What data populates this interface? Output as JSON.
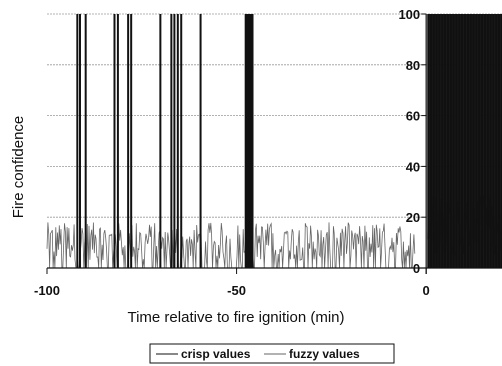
{
  "chart_data": {
    "type": "line",
    "title": "",
    "xlabel": "Time relative to fire ignition (min)",
    "ylabel": "Fire confidence",
    "xlim": [
      -100,
      20
    ],
    "ylim": [
      0,
      100
    ],
    "x_ticks": [
      -100,
      -50,
      0
    ],
    "y_ticks": [
      0,
      20,
      40,
      60,
      80,
      100
    ],
    "grid": "horizontal",
    "legend_position": "bottom-center",
    "series": [
      {
        "name": "crisp values",
        "color": "#111111",
        "style": "solid",
        "spikes": [
          -92,
          -91.3,
          -89.8,
          -82.2,
          -81.3,
          -78.6,
          -77.8,
          -70.1,
          -67.2,
          -66.4,
          -65.5,
          -64.6,
          -59.5,
          -47.6,
          -47.3,
          -47.0,
          -46.7,
          -46.4,
          -46.1,
          -45.8
        ],
        "dense_region": [
          0.4,
          20
        ],
        "value_low": 0,
        "value_high": 100
      },
      {
        "name": "fuzzy values",
        "color": "#666666",
        "style": "solid",
        "noise_range": [
          -100,
          -3
        ],
        "noise_level": [
          3,
          18
        ],
        "dense_region": [
          0.4,
          20
        ],
        "dense_level": [
          5,
          30
        ]
      }
    ]
  }
}
